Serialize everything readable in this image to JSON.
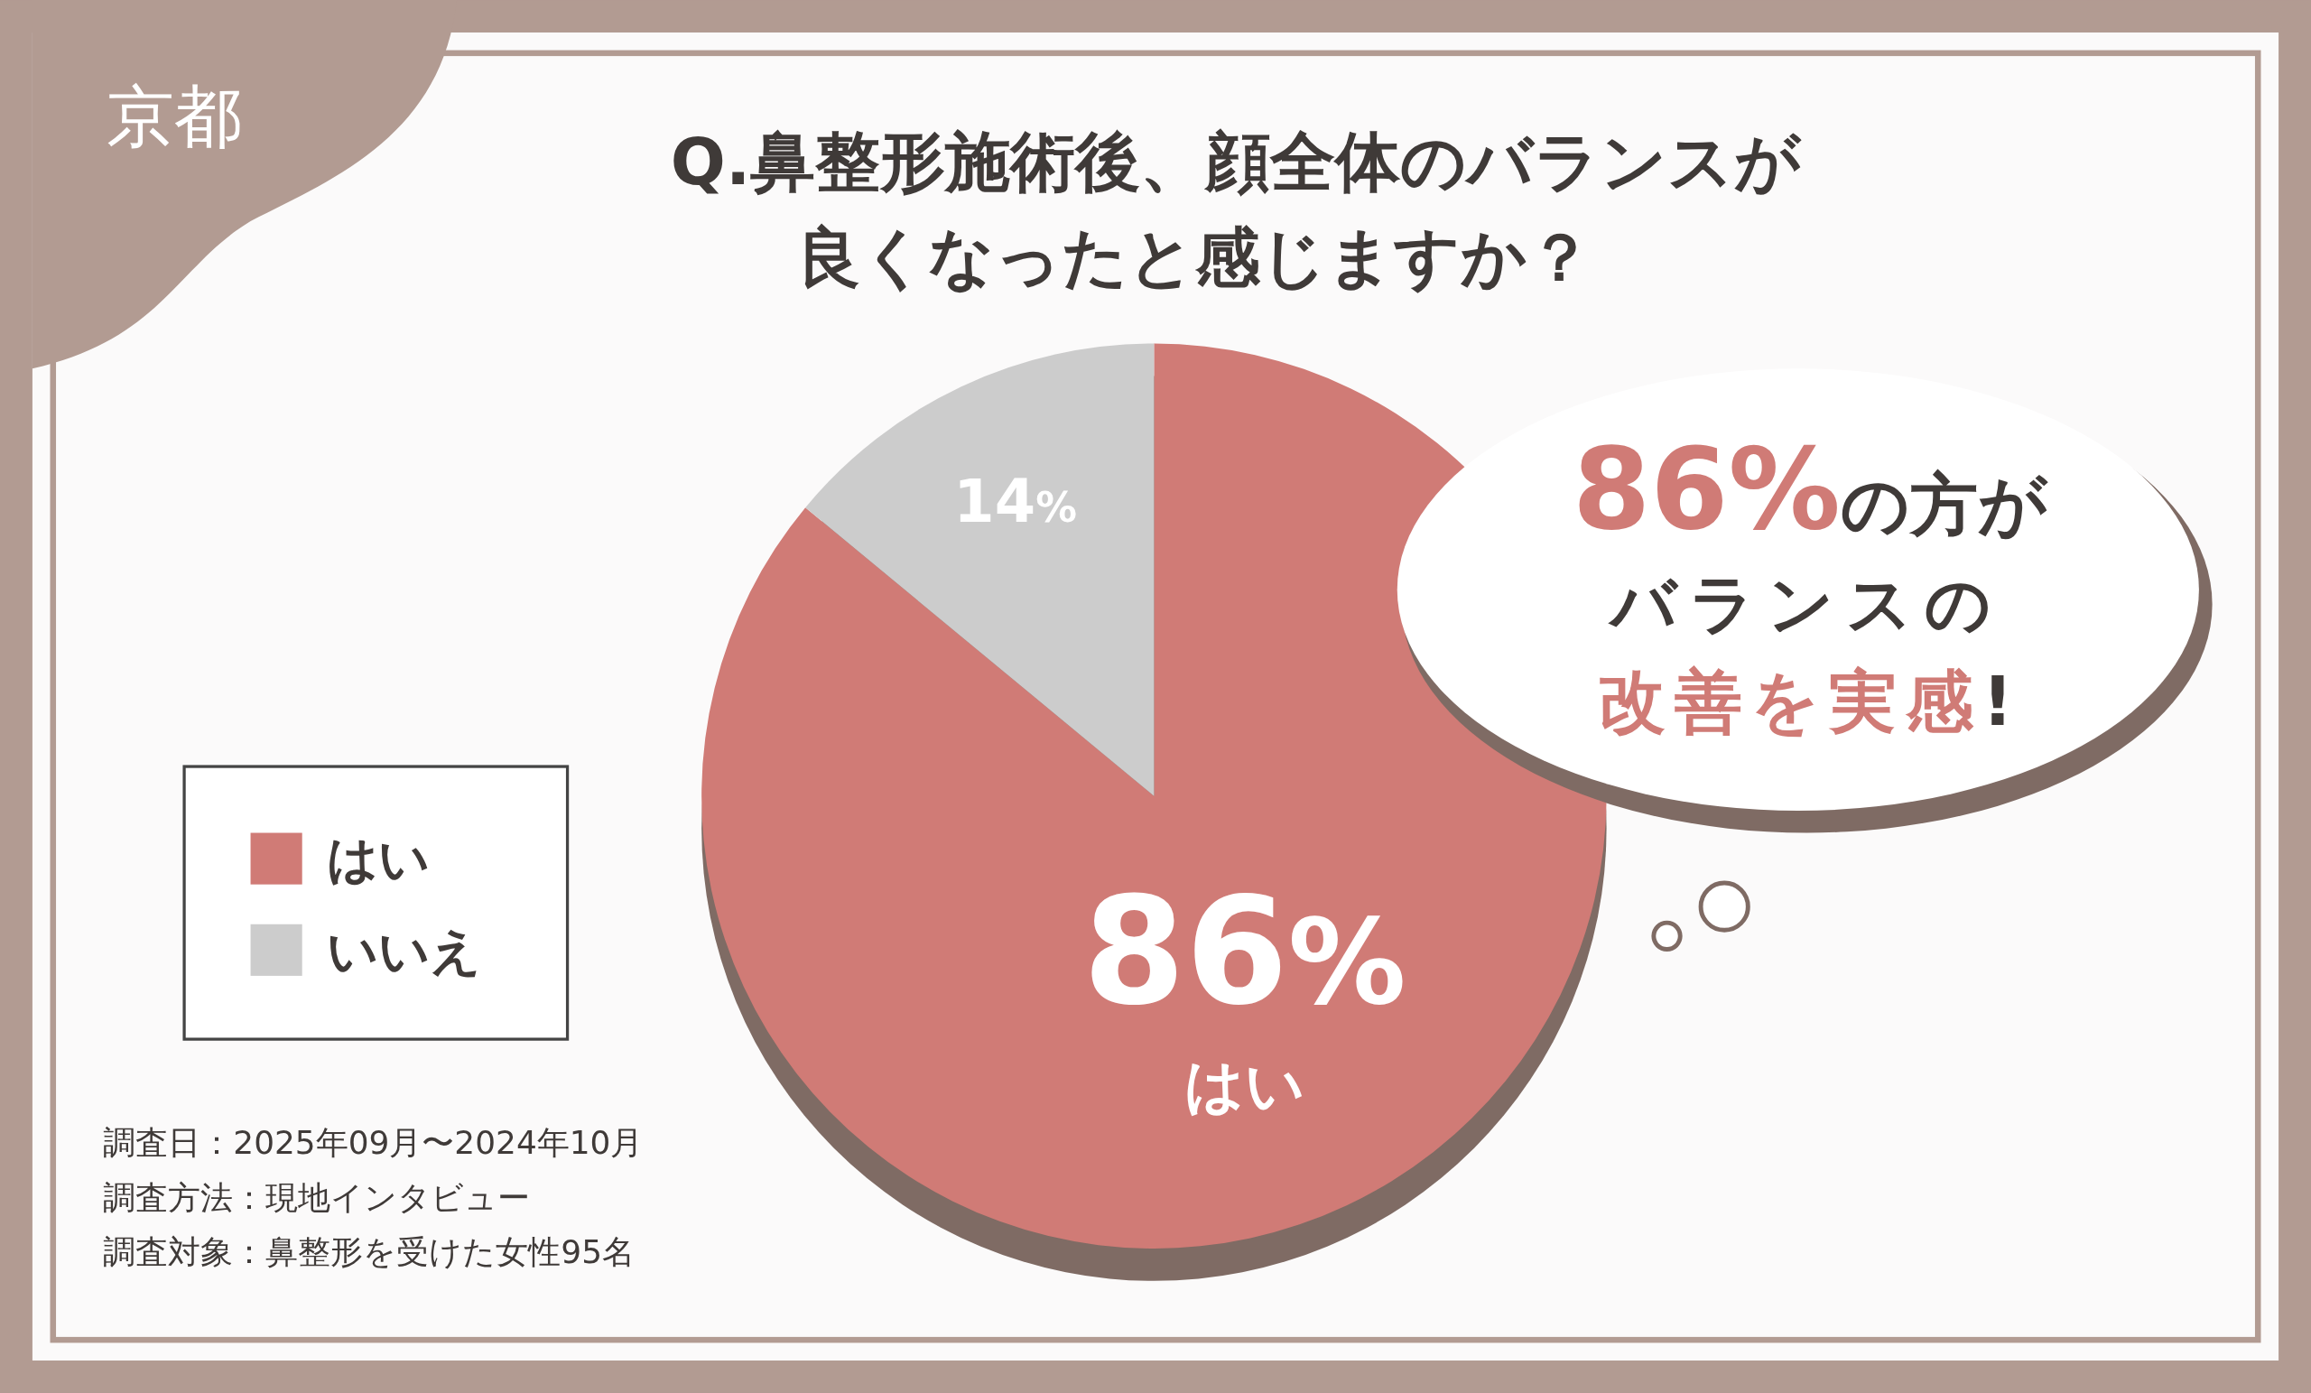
{
  "chart_data": {
    "type": "pie",
    "title": "Q.鼻整形施術後、顔全体のバランスが良くなったと感じますか？",
    "categories": [
      "はい",
      "いいえ"
    ],
    "values": [
      86,
      14
    ],
    "colors": [
      "#d07b76",
      "#cccccc"
    ],
    "value_labels": [
      "86%",
      "14%"
    ],
    "legend": "left",
    "annotations": [
      "京都",
      "86%の方がバランスの改善を実感!",
      "調査日：2025年09月〜2024年10月",
      "調査方法：現地インタビュー",
      "調査対象：鼻整形を受けた女性95名"
    ]
  }
}
